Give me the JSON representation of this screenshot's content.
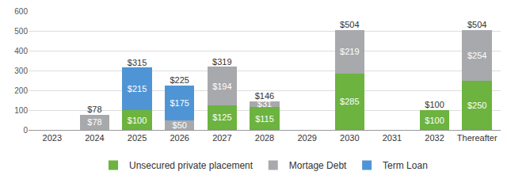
{
  "chart_data": {
    "type": "bar",
    "categories": [
      "2023",
      "2024",
      "2025",
      "2026",
      "2027",
      "2028",
      "2029",
      "2030",
      "2031",
      "2032",
      "Thereafter"
    ],
    "series": [
      {
        "name": "Unsecured private placement",
        "color": "#6cb33f",
        "values": [
          null,
          null,
          100,
          null,
          125,
          115,
          null,
          285,
          null,
          100,
          250
        ],
        "value_labels": [
          null,
          null,
          "$100",
          null,
          "$125",
          "$115",
          null,
          "$285",
          null,
          "$100",
          "$250"
        ]
      },
      {
        "name": "Mortage Debt",
        "color": "#a7a9ac",
        "values": [
          null,
          78,
          null,
          50,
          194,
          31,
          null,
          219,
          null,
          null,
          254
        ],
        "value_labels": [
          null,
          "$78",
          null,
          "$50",
          "$194",
          "$31",
          null,
          "$219",
          null,
          null,
          "$254"
        ]
      },
      {
        "name": "Term Loan",
        "color": "#4f95d5",
        "values": [
          null,
          null,
          215,
          175,
          null,
          null,
          null,
          null,
          null,
          null,
          null
        ],
        "value_labels": [
          null,
          null,
          "$215",
          "$175",
          null,
          null,
          null,
          null,
          null,
          null,
          null
        ]
      }
    ],
    "totals": [
      null,
      78,
      315,
      225,
      319,
      146,
      null,
      504,
      null,
      100,
      504
    ],
    "total_labels": [
      null,
      "$78",
      "$315",
      "$225",
      "$319",
      "$146",
      null,
      "$504",
      null,
      "$100",
      "$504"
    ],
    "ylim": [
      0,
      600
    ],
    "yticks": [
      0,
      100,
      200,
      300,
      400,
      500,
      600
    ],
    "stacked": true,
    "data_labels": true,
    "grid": true,
    "legend": "bottom"
  }
}
